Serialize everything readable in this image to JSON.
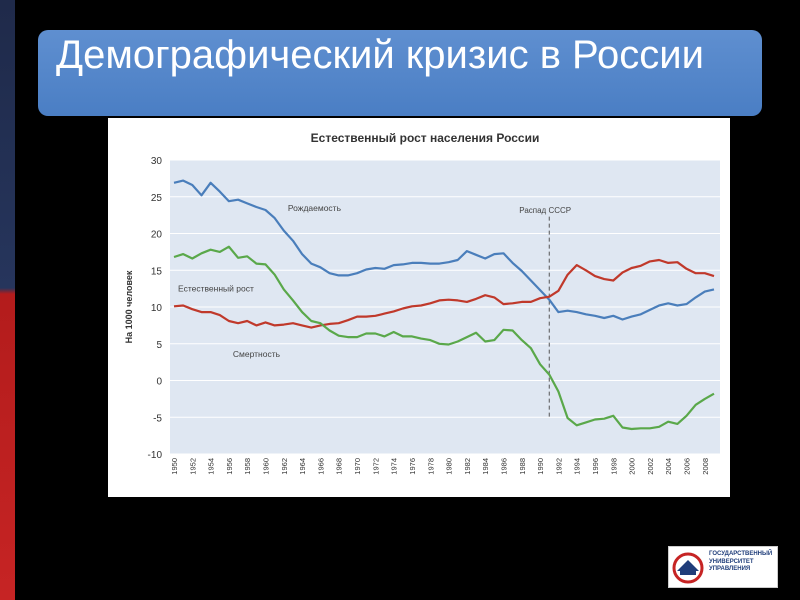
{
  "slide": {
    "title": "Демографический кризис в России"
  },
  "logo": {
    "text": "ГОСУДАРСТВЕННЫЙ\nУНИВЕРСИТЕТ\nУПРАВЛЕНИЯ",
    "icon": "university-logo-icon"
  },
  "colors": {
    "title_bg": "#4f81c4",
    "birth": "#4a7ebb",
    "death": "#c0392b",
    "growth": "#5aa84a"
  },
  "chart_data": {
    "type": "line",
    "title": "Естественный рост населения России",
    "ylabel": "На 1000 человек",
    "xlabel": "",
    "ylim": [
      -10,
      30
    ],
    "yticks": [
      30,
      25,
      20,
      15,
      10,
      5,
      0,
      -5,
      -10
    ],
    "xticks": [
      "1950",
      "1952",
      "1954",
      "1956",
      "1958",
      "1960",
      "1962",
      "1964",
      "1966",
      "1968",
      "1970",
      "1972",
      "1974",
      "1976",
      "1978",
      "1980",
      "1982",
      "1984",
      "1986",
      "1988",
      "1990",
      "1992",
      "1994",
      "1996",
      "1998",
      "2000",
      "2002",
      "2004",
      "2006",
      "2008"
    ],
    "grid": true,
    "x": [
      1950,
      1951,
      1952,
      1953,
      1954,
      1955,
      1956,
      1957,
      1958,
      1959,
      1960,
      1961,
      1962,
      1963,
      1964,
      1965,
      1966,
      1967,
      1968,
      1969,
      1970,
      1971,
      1972,
      1973,
      1974,
      1975,
      1976,
      1977,
      1978,
      1979,
      1980,
      1981,
      1982,
      1983,
      1984,
      1985,
      1986,
      1987,
      1988,
      1989,
      1990,
      1991,
      1992,
      1993,
      1994,
      1995,
      1996,
      1997,
      1998,
      1999,
      2000,
      2001,
      2002,
      2003,
      2004,
      2005,
      2006,
      2007,
      2008,
      2009
    ],
    "series": [
      {
        "name": "Рождаемость",
        "color": "#4a7ebb",
        "values": [
          26.9,
          27.2,
          26.6,
          25.2,
          26.9,
          25.7,
          24.4,
          24.6,
          24.1,
          23.6,
          23.2,
          22.1,
          20.4,
          19.0,
          17.2,
          15.9,
          15.4,
          14.6,
          14.3,
          14.3,
          14.6,
          15.1,
          15.3,
          15.2,
          15.7,
          15.8,
          16.0,
          16.0,
          15.9,
          15.9,
          16.1,
          16.4,
          17.6,
          17.1,
          16.6,
          17.2,
          17.3,
          16.0,
          14.9,
          13.6,
          12.3,
          11.0,
          9.3,
          9.5,
          9.3,
          9.0,
          8.8,
          8.5,
          8.8,
          8.3,
          8.7,
          9.0,
          9.6,
          10.2,
          10.5,
          10.2,
          10.4,
          11.3,
          12.1,
          12.4
        ],
        "label_year": 1962,
        "label_value": 23.5
      },
      {
        "name": "Смертность",
        "color": "#c0392b",
        "values": [
          10.1,
          10.2,
          9.7,
          9.3,
          9.3,
          8.9,
          8.1,
          7.8,
          8.1,
          7.5,
          7.9,
          7.5,
          7.6,
          7.8,
          7.5,
          7.2,
          7.5,
          7.7,
          7.8,
          8.2,
          8.7,
          8.7,
          8.8,
          9.1,
          9.4,
          9.8,
          10.1,
          10.2,
          10.5,
          10.9,
          11.0,
          10.9,
          10.7,
          11.1,
          11.6,
          11.3,
          10.4,
          10.5,
          10.7,
          10.7,
          11.2,
          11.4,
          12.2,
          14.4,
          15.7,
          15.0,
          14.2,
          13.8,
          13.6,
          14.7,
          15.3,
          15.6,
          16.2,
          16.4,
          16.0,
          16.1,
          15.2,
          14.6,
          14.6,
          14.2
        ],
        "label_year": 1956,
        "label_value": 3.6
      },
      {
        "name": "Естественный рост",
        "color": "#5aa84a",
        "values": [
          16.8,
          17.2,
          16.6,
          17.3,
          17.8,
          17.5,
          18.2,
          16.7,
          16.9,
          15.9,
          15.8,
          14.4,
          12.4,
          10.9,
          9.3,
          8.1,
          7.8,
          6.8,
          6.1,
          5.9,
          5.9,
          6.4,
          6.4,
          6.0,
          6.6,
          6.0,
          6.0,
          5.7,
          5.5,
          5.0,
          4.9,
          5.3,
          5.9,
          6.5,
          5.3,
          5.5,
          6.9,
          6.8,
          5.5,
          4.4,
          2.2,
          0.8,
          -1.5,
          -5.1,
          -6.1,
          -5.7,
          -5.3,
          -5.2,
          -4.8,
          -6.4,
          -6.6,
          -6.5,
          -6.5,
          -6.3,
          -5.6,
          -5.9,
          -4.8,
          -3.3,
          -2.5,
          -1.8
        ],
        "label_year": 1950,
        "label_value": 12.5
      }
    ],
    "annotations": [
      {
        "text": "Распад СССР",
        "x": 1991
      }
    ]
  }
}
